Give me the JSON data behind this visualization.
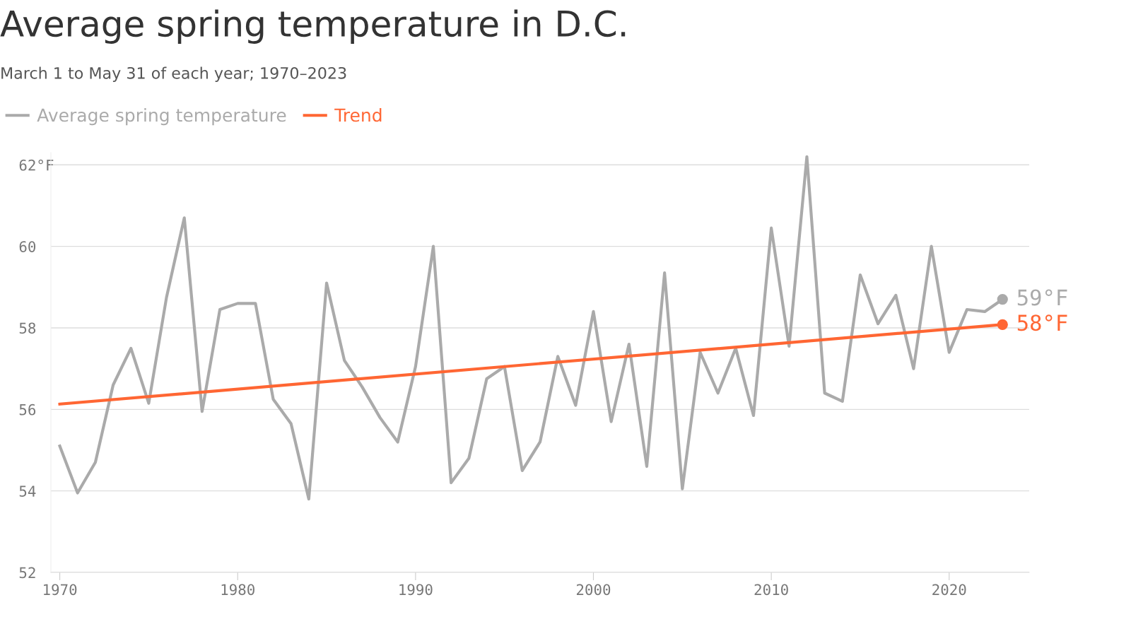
{
  "chart_data": {
    "type": "line",
    "title": "Average spring temperature in D.C.",
    "subtitle": "March 1 to May 31 of each year; 1970–2023",
    "x": [
      1970,
      1971,
      1972,
      1973,
      1974,
      1975,
      1976,
      1977,
      1978,
      1979,
      1980,
      1981,
      1982,
      1983,
      1984,
      1985,
      1986,
      1987,
      1988,
      1989,
      1990,
      1991,
      1992,
      1993,
      1994,
      1995,
      1996,
      1997,
      1998,
      1999,
      2000,
      2001,
      2002,
      2003,
      2004,
      2005,
      2006,
      2007,
      2008,
      2009,
      2010,
      2011,
      2012,
      2013,
      2014,
      2015,
      2016,
      2017,
      2018,
      2019,
      2020,
      2021,
      2022,
      2023
    ],
    "series": [
      {
        "name": "Average spring temperature",
        "color": "#aaaaaa",
        "values": [
          55.1,
          53.95,
          54.7,
          56.6,
          57.5,
          56.15,
          58.75,
          60.7,
          55.95,
          58.45,
          58.6,
          58.6,
          56.25,
          55.65,
          53.8,
          59.1,
          57.2,
          56.55,
          55.8,
          55.2,
          57.05,
          60.0,
          54.2,
          54.8,
          56.75,
          57.05,
          54.5,
          55.2,
          57.3,
          56.1,
          58.4,
          55.7,
          57.6,
          54.6,
          59.35,
          54.05,
          57.4,
          56.4,
          57.5,
          55.85,
          60.45,
          57.55,
          62.2,
          56.4,
          56.2,
          59.3,
          58.1,
          58.8,
          57.0,
          60.0,
          57.4,
          58.45,
          58.4,
          58.7
        ]
      },
      {
        "name": "Trend",
        "type": "line",
        "color": "#ff6633",
        "x": [
          1970,
          2023
        ],
        "values": [
          56.13,
          58.08
        ]
      }
    ],
    "annotations": [
      {
        "text": "59°F",
        "x": 2023,
        "y": 58.7
      },
      {
        "text": "58°F",
        "x": 2023,
        "y": 58.08
      }
    ],
    "xlim": [
      1969.5,
      2024.5
    ],
    "xticks": [
      1970,
      1980,
      1990,
      2000,
      2010,
      2020
    ],
    "ylim": [
      52,
      62.3
    ],
    "yticks": [
      {
        "value": 52,
        "label": "52"
      },
      {
        "value": 54,
        "label": "54"
      },
      {
        "value": 56,
        "label": "56"
      },
      {
        "value": 58,
        "label": "58"
      },
      {
        "value": 60,
        "label": "60"
      },
      {
        "value": 62,
        "label": "62°F"
      }
    ],
    "grid": "y",
    "legend": "top left",
    "line_style": "solid"
  }
}
